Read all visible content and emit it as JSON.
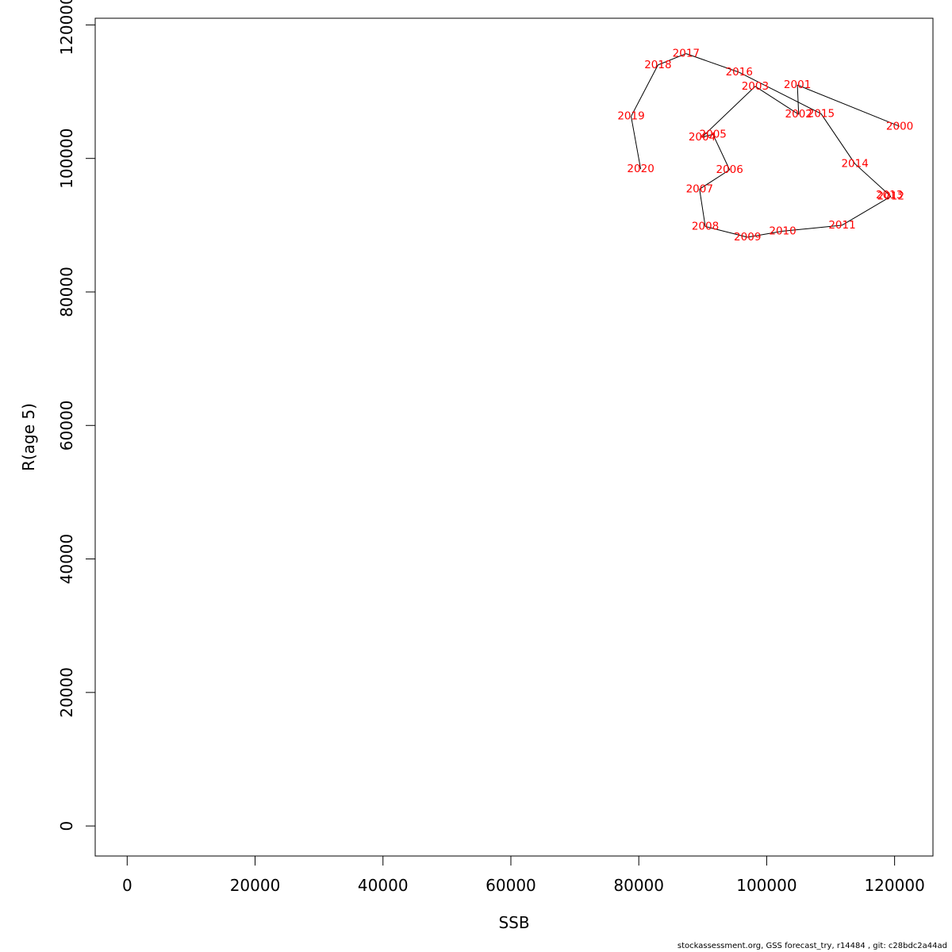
{
  "chart_data": {
    "type": "line",
    "title": "",
    "xlabel": "SSB",
    "ylabel": "R(age 5)",
    "xlim": [
      -5000,
      126000
    ],
    "ylim": [
      -4500,
      121000
    ],
    "x_ticks": [
      0,
      20000,
      40000,
      60000,
      80000,
      100000,
      120000
    ],
    "y_ticks": [
      0,
      20000,
      40000,
      60000,
      80000,
      100000,
      120000
    ],
    "grid": false,
    "line_color": "#000000",
    "label_color": "#ff0000",
    "points": [
      {
        "year": "2000",
        "ssb": 120800,
        "r": 104800
      },
      {
        "year": "2001",
        "ssb": 104800,
        "r": 111000
      },
      {
        "year": "2002",
        "ssb": 105000,
        "r": 106600
      },
      {
        "year": "2003",
        "ssb": 98200,
        "r": 110800
      },
      {
        "year": "2004",
        "ssb": 89900,
        "r": 103200
      },
      {
        "year": "2005",
        "ssb": 91600,
        "r": 103600
      },
      {
        "year": "2006",
        "ssb": 94200,
        "r": 98300
      },
      {
        "year": "2007",
        "ssb": 89500,
        "r": 95400
      },
      {
        "year": "2008",
        "ssb": 90400,
        "r": 89800
      },
      {
        "year": "2009",
        "ssb": 97000,
        "r": 88200
      },
      {
        "year": "2010",
        "ssb": 102500,
        "r": 89100
      },
      {
        "year": "2011",
        "ssb": 111800,
        "r": 90000
      },
      {
        "year": "2012",
        "ssb": 119400,
        "r": 94300
      },
      {
        "year": "2013",
        "ssb": 119200,
        "r": 94500
      },
      {
        "year": "2014",
        "ssb": 113800,
        "r": 99200
      },
      {
        "year": "2015",
        "ssb": 108500,
        "r": 106700
      },
      {
        "year": "2016",
        "ssb": 95700,
        "r": 112900
      },
      {
        "year": "2017",
        "ssb": 87400,
        "r": 115700
      },
      {
        "year": "2018",
        "ssb": 83000,
        "r": 114000
      },
      {
        "year": "2019",
        "ssb": 78800,
        "r": 106300
      },
      {
        "year": "2020",
        "ssb": 80300,
        "r": 98400
      }
    ]
  },
  "footer": "stockassessment.org, GSS forecast_try, r14484 , git: c28bdc2a44ad"
}
